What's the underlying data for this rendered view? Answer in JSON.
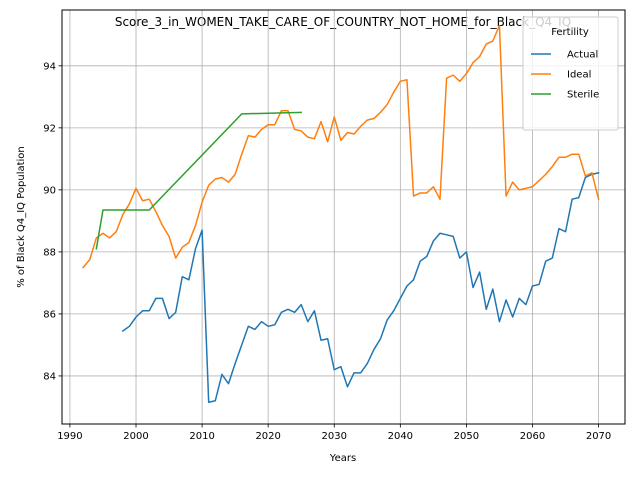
{
  "chart_data": {
    "type": "line",
    "title": "Score_3_in_WOMEN_TAKE_CARE_OF_COUNTRY_NOT_HOME_for_Black_Q4_IQ",
    "xlabel": "Years",
    "ylabel": "% of Black Q4_IQ Population",
    "xlim": [
      1988.8,
      2074.0
    ],
    "ylim": [
      82.45,
      95.8
    ],
    "xticks": [
      1990,
      2000,
      2010,
      2020,
      2030,
      2040,
      2050,
      2060,
      2070
    ],
    "yticks": [
      84,
      86,
      88,
      90,
      92,
      94
    ],
    "grid": true,
    "legend": {
      "title": "Fertility",
      "placement": "top-right"
    },
    "series": [
      {
        "name": "Actual",
        "color": "#1f77b4",
        "x": [
          1998,
          1999,
          2000,
          2001,
          2002,
          2003,
          2004,
          2005,
          2006,
          2007,
          2008,
          2009,
          2010,
          2011,
          2012,
          2013,
          2014,
          2015,
          2016,
          2017,
          2018,
          2019,
          2020,
          2021,
          2022,
          2023,
          2024,
          2025,
          2026,
          2027,
          2028,
          2029,
          2030,
          2031,
          2032,
          2033,
          2034,
          2035,
          2036,
          2037,
          2038,
          2039,
          2040,
          2041,
          2042,
          2043,
          2044,
          2045,
          2046,
          2047,
          2048,
          2049,
          2050,
          2051,
          2052,
          2053,
          2054,
          2055,
          2056,
          2057,
          2058,
          2059,
          2060,
          2061,
          2062,
          2063,
          2064,
          2065,
          2066,
          2067,
          2068,
          2069,
          2070
        ],
        "y": [
          85.45,
          85.6,
          85.9,
          86.1,
          86.1,
          86.5,
          86.5,
          85.85,
          86.05,
          87.2,
          87.1,
          88.1,
          88.7,
          83.15,
          83.2,
          84.05,
          83.75,
          84.4,
          85.0,
          85.6,
          85.5,
          85.75,
          85.6,
          85.65,
          86.05,
          86.15,
          86.05,
          86.3,
          85.75,
          86.1,
          85.15,
          85.2,
          84.2,
          84.3,
          83.65,
          84.1,
          84.1,
          84.4,
          84.85,
          85.2,
          85.8,
          86.1,
          86.5,
          86.9,
          87.1,
          87.7,
          87.85,
          88.35,
          88.6,
          88.55,
          88.5,
          87.8,
          88.0,
          86.85,
          87.35,
          86.15,
          86.8,
          85.75,
          86.45,
          85.9,
          86.5,
          86.3,
          86.9,
          86.95,
          87.7,
          87.8,
          88.75,
          88.65,
          89.7,
          89.75,
          90.4,
          90.5,
          90.55
        ]
      },
      {
        "name": "Ideal",
        "color": "#ff7f0e",
        "x": [
          1992,
          1993,
          1994,
          1995,
          1996,
          1997,
          1998,
          1999,
          2000,
          2001,
          2002,
          2003,
          2004,
          2005,
          2006,
          2007,
          2008,
          2009,
          2010,
          2011,
          2012,
          2013,
          2014,
          2015,
          2016,
          2017,
          2018,
          2019,
          2020,
          2021,
          2022,
          2023,
          2024,
          2025,
          2026,
          2027,
          2028,
          2029,
          2030,
          2031,
          2032,
          2033,
          2034,
          2035,
          2036,
          2037,
          2038,
          2039,
          2040,
          2041,
          2042,
          2043,
          2044,
          2045,
          2046,
          2047,
          2048,
          2049,
          2050,
          2051,
          2052,
          2053,
          2054,
          2055,
          2056,
          2057,
          2058,
          2059,
          2060,
          2061,
          2062,
          2063,
          2064,
          2065,
          2066,
          2067,
          2068,
          2069,
          2070
        ],
        "y": [
          87.5,
          87.75,
          88.45,
          88.6,
          88.45,
          88.65,
          89.2,
          89.55,
          90.05,
          89.65,
          89.7,
          89.3,
          88.85,
          88.5,
          87.8,
          88.15,
          88.3,
          88.85,
          89.6,
          90.15,
          90.35,
          90.4,
          90.25,
          90.5,
          91.15,
          91.75,
          91.7,
          91.95,
          92.1,
          92.1,
          92.55,
          92.55,
          91.95,
          91.9,
          91.7,
          91.65,
          92.2,
          91.55,
          92.35,
          91.6,
          91.85,
          91.8,
          92.05,
          92.25,
          92.3,
          92.5,
          92.75,
          93.15,
          93.5,
          93.55,
          89.8,
          89.9,
          89.9,
          90.1,
          89.7,
          93.6,
          93.7,
          93.5,
          93.75,
          94.1,
          94.3,
          94.7,
          94.8,
          95.3,
          89.8,
          90.25,
          90.0,
          90.05,
          90.1,
          90.3,
          90.5,
          90.75,
          91.05,
          91.05,
          91.15,
          91.15,
          90.45,
          90.55,
          89.7
        ]
      },
      {
        "name": "Sterile",
        "color": "#2ca02c",
        "x": [
          1994,
          1995,
          2002,
          2016,
          2025
        ],
        "y": [
          88.1,
          89.35,
          89.35,
          92.45,
          92.5
        ]
      }
    ]
  }
}
